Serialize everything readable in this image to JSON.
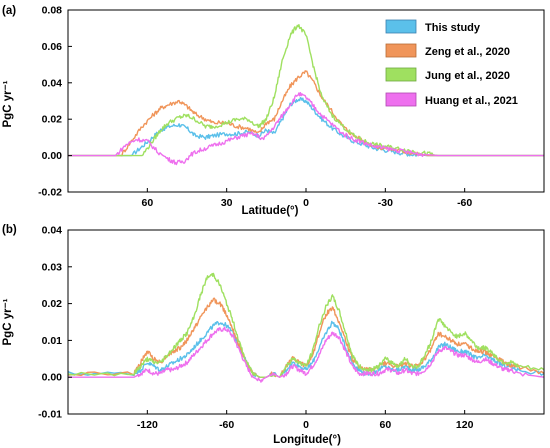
{
  "chart_data": [
    {
      "type": "line",
      "panel_label": "(a)",
      "xlabel": "Latitude(°)",
      "ylabel": "PgC yr⁻¹",
      "x_ticks": [
        60,
        30,
        0,
        -30,
        -60
      ],
      "x_tick_labels": [
        "60",
        "30",
        "0",
        "-30",
        "-60"
      ],
      "xlim": [
        90,
        -90
      ],
      "y_ticks": [
        -0.02,
        0.0,
        0.02,
        0.04,
        0.06,
        0.08
      ],
      "y_tick_labels": [
        "-0.02",
        "0.00",
        "0.02",
        "0.04",
        "0.06",
        "0.08"
      ],
      "ylim": [
        -0.02,
        0.08
      ],
      "grid": false,
      "legend_position": "top-right",
      "series": [
        {
          "name": "This study",
          "color": "#5bc0ea",
          "x": [
            66,
            62,
            58,
            55,
            52,
            48,
            45,
            42,
            38,
            35,
            30,
            26,
            22,
            18,
            15,
            12,
            9,
            6,
            3,
            0,
            -3,
            -6,
            -10,
            -14,
            -18,
            -22,
            -26,
            -30,
            -34,
            -38,
            -42,
            -46
          ],
          "values": [
            0.0,
            0.005,
            0.01,
            0.014,
            0.016,
            0.017,
            0.015,
            0.011,
            0.01,
            0.011,
            0.012,
            0.012,
            0.013,
            0.011,
            0.014,
            0.012,
            0.02,
            0.028,
            0.031,
            0.03,
            0.025,
            0.02,
            0.015,
            0.011,
            0.008,
            0.006,
            0.004,
            0.003,
            0.002,
            0.001,
            0.0005,
            0.0
          ]
        },
        {
          "name": "Zeng et al., 2020",
          "color": "#f0955a",
          "x": [
            70,
            66,
            62,
            58,
            55,
            52,
            48,
            45,
            42,
            38,
            35,
            30,
            26,
            22,
            18,
            15,
            12,
            9,
            6,
            3,
            0,
            -3,
            -6,
            -10,
            -14,
            -18,
            -22,
            -26,
            -30,
            -34,
            -38,
            -42,
            -46
          ],
          "values": [
            0.0,
            0.008,
            0.016,
            0.022,
            0.026,
            0.028,
            0.03,
            0.027,
            0.023,
            0.02,
            0.018,
            0.018,
            0.016,
            0.015,
            0.012,
            0.018,
            0.02,
            0.03,
            0.038,
            0.043,
            0.046,
            0.04,
            0.032,
            0.024,
            0.016,
            0.011,
            0.008,
            0.005,
            0.004,
            0.003,
            0.002,
            0.001,
            0.0
          ]
        },
        {
          "name": "Jung et al., 2020",
          "color": "#9fe060",
          "x": [
            62,
            58,
            55,
            52,
            48,
            45,
            42,
            38,
            35,
            30,
            26,
            22,
            18,
            15,
            12,
            9,
            6,
            3,
            0,
            -3,
            -6,
            -10,
            -14,
            -18,
            -22,
            -26,
            -30,
            -34,
            -38,
            -42,
            -46,
            -50
          ],
          "values": [
            0.0,
            0.008,
            0.014,
            0.018,
            0.021,
            0.022,
            0.02,
            0.016,
            0.016,
            0.018,
            0.02,
            0.02,
            0.016,
            0.02,
            0.032,
            0.052,
            0.066,
            0.072,
            0.066,
            0.048,
            0.032,
            0.022,
            0.016,
            0.011,
            0.008,
            0.006,
            0.005,
            0.004,
            0.003,
            0.002,
            0.001,
            0.0
          ]
        },
        {
          "name": "Huang et al., 2021",
          "color": "#ee70ee",
          "x": [
            72,
            68,
            64,
            60,
            56,
            52,
            49,
            46,
            43,
            40,
            36,
            32,
            28,
            24,
            20,
            16,
            12,
            9,
            6,
            3,
            0,
            -3,
            -6,
            -10,
            -14,
            -18,
            -22,
            -26,
            -30,
            -34,
            -38,
            -42,
            -46,
            -50
          ],
          "values": [
            0.0,
            0.006,
            0.009,
            0.008,
            0.002,
            -0.002,
            -0.004,
            -0.003,
            0.001,
            0.003,
            0.005,
            0.007,
            0.009,
            0.011,
            0.012,
            0.009,
            0.016,
            0.022,
            0.028,
            0.034,
            0.032,
            0.027,
            0.022,
            0.017,
            0.012,
            0.009,
            0.007,
            0.005,
            0.004,
            0.003,
            0.002,
            0.001,
            0.0005,
            0.0
          ]
        }
      ]
    },
    {
      "type": "line",
      "panel_label": "(b)",
      "xlabel": "Longitude(°)",
      "ylabel": "PgC yr⁻¹",
      "x_ticks": [
        -120,
        -60,
        0,
        60,
        120
      ],
      "x_tick_labels": [
        "-120",
        "-60",
        "0",
        "60",
        "120"
      ],
      "xlim": [
        -180,
        180
      ],
      "y_ticks": [
        -0.01,
        0.0,
        0.01,
        0.02,
        0.03,
        0.04
      ],
      "y_tick_labels": [
        "-0.01",
        "0.00",
        "0.01",
        "0.02",
        "0.03",
        "0.04"
      ],
      "ylim": [
        -0.01,
        0.04
      ],
      "grid": false,
      "series": [
        {
          "name": "This study",
          "color": "#5bc0ea",
          "x": [
            -180,
            -130,
            -125,
            -120,
            -115,
            -110,
            -105,
            -100,
            -95,
            -90,
            -85,
            -80,
            -75,
            -70,
            -65,
            -60,
            -55,
            -50,
            -45,
            -40,
            -35,
            -30,
            -25,
            -20,
            -15,
            -10,
            -5,
            0,
            5,
            10,
            15,
            20,
            25,
            30,
            35,
            40,
            45,
            50,
            55,
            60,
            65,
            70,
            75,
            80,
            85,
            90,
            95,
            100,
            105,
            110,
            115,
            120,
            125,
            130,
            135,
            140,
            145,
            150,
            155,
            160,
            180
          ],
          "values": [
            0.001,
            0.001,
            0.002,
            0.004,
            0.003,
            0.002,
            0.003,
            0.004,
            0.005,
            0.006,
            0.008,
            0.01,
            0.012,
            0.014,
            0.015,
            0.014,
            0.012,
            0.008,
            0.004,
            0.001,
            0.0,
            0.0,
            0.001,
            0.0,
            0.002,
            0.004,
            0.003,
            0.002,
            0.004,
            0.008,
            0.012,
            0.015,
            0.013,
            0.008,
            0.004,
            0.002,
            0.001,
            0.001,
            0.002,
            0.003,
            0.002,
            0.002,
            0.003,
            0.002,
            0.002,
            0.003,
            0.005,
            0.008,
            0.009,
            0.008,
            0.007,
            0.007,
            0.006,
            0.005,
            0.006,
            0.005,
            0.004,
            0.003,
            0.003,
            0.002,
            0.001
          ]
        },
        {
          "name": "Zeng et al., 2020",
          "color": "#f0955a",
          "x": [
            -180,
            -130,
            -125,
            -120,
            -115,
            -110,
            -105,
            -100,
            -95,
            -90,
            -85,
            -80,
            -75,
            -70,
            -65,
            -60,
            -55,
            -50,
            -45,
            -40,
            -35,
            -30,
            -25,
            -20,
            -15,
            -10,
            -5,
            0,
            5,
            10,
            15,
            20,
            25,
            30,
            35,
            40,
            45,
            50,
            55,
            60,
            65,
            70,
            75,
            80,
            85,
            90,
            95,
            100,
            105,
            110,
            115,
            120,
            125,
            130,
            135,
            140,
            145,
            150,
            155,
            160,
            180
          ],
          "values": [
            0.001,
            0.001,
            0.004,
            0.007,
            0.005,
            0.004,
            0.006,
            0.007,
            0.008,
            0.01,
            0.013,
            0.016,
            0.019,
            0.021,
            0.02,
            0.017,
            0.013,
            0.008,
            0.004,
            0.001,
            0.0,
            0.0,
            0.001,
            0.0,
            0.003,
            0.005,
            0.004,
            0.003,
            0.006,
            0.012,
            0.017,
            0.019,
            0.015,
            0.01,
            0.005,
            0.003,
            0.002,
            0.002,
            0.003,
            0.004,
            0.003,
            0.003,
            0.004,
            0.003,
            0.003,
            0.005,
            0.008,
            0.012,
            0.011,
            0.01,
            0.009,
            0.009,
            0.008,
            0.007,
            0.007,
            0.006,
            0.005,
            0.004,
            0.003,
            0.003,
            0.001
          ]
        },
        {
          "name": "Jung et al., 2020",
          "color": "#9fe060",
          "x": [
            -180,
            -130,
            -125,
            -120,
            -115,
            -110,
            -105,
            -100,
            -95,
            -90,
            -85,
            -80,
            -75,
            -70,
            -65,
            -60,
            -55,
            -50,
            -45,
            -40,
            -35,
            -30,
            -25,
            -20,
            -15,
            -10,
            -5,
            0,
            5,
            10,
            15,
            20,
            25,
            30,
            35,
            40,
            45,
            50,
            55,
            60,
            65,
            70,
            75,
            80,
            85,
            90,
            95,
            100,
            105,
            110,
            115,
            120,
            125,
            130,
            135,
            140,
            145,
            150,
            155,
            160,
            180
          ],
          "values": [
            0.001,
            0.001,
            0.003,
            0.005,
            0.004,
            0.004,
            0.006,
            0.008,
            0.01,
            0.012,
            0.016,
            0.022,
            0.027,
            0.028,
            0.025,
            0.02,
            0.015,
            0.009,
            0.004,
            0.001,
            0.0,
            0.0,
            0.001,
            0.0,
            0.003,
            0.005,
            0.004,
            0.003,
            0.007,
            0.014,
            0.019,
            0.022,
            0.018,
            0.012,
            0.006,
            0.003,
            0.002,
            0.002,
            0.003,
            0.005,
            0.004,
            0.003,
            0.005,
            0.003,
            0.003,
            0.006,
            0.01,
            0.016,
            0.014,
            0.012,
            0.011,
            0.012,
            0.01,
            0.008,
            0.008,
            0.007,
            0.005,
            0.004,
            0.004,
            0.003,
            0.002
          ]
        },
        {
          "name": "Huang et al., 2021",
          "color": "#ee70ee",
          "x": [
            -180,
            -130,
            -125,
            -120,
            -115,
            -110,
            -105,
            -100,
            -95,
            -90,
            -85,
            -80,
            -75,
            -70,
            -65,
            -60,
            -55,
            -50,
            -45,
            -40,
            -35,
            -30,
            -25,
            -20,
            -15,
            -10,
            -5,
            0,
            5,
            10,
            15,
            20,
            25,
            30,
            35,
            40,
            45,
            50,
            55,
            60,
            65,
            70,
            75,
            80,
            85,
            90,
            95,
            100,
            105,
            110,
            115,
            120,
            125,
            130,
            135,
            140,
            145,
            150,
            155,
            160,
            180
          ],
          "values": [
            0.0,
            0.0,
            0.001,
            0.002,
            0.001,
            0.001,
            0.002,
            0.002,
            0.003,
            0.004,
            0.006,
            0.008,
            0.01,
            0.012,
            0.013,
            0.013,
            0.011,
            0.007,
            0.003,
            0.0,
            -0.001,
            0.0,
            0.001,
            0.0,
            0.001,
            0.003,
            0.002,
            0.001,
            0.003,
            0.006,
            0.01,
            0.012,
            0.011,
            0.007,
            0.003,
            0.001,
            0.001,
            0.001,
            0.001,
            0.002,
            0.002,
            0.001,
            0.002,
            0.001,
            0.001,
            0.002,
            0.004,
            0.007,
            0.008,
            0.007,
            0.006,
            0.006,
            0.005,
            0.004,
            0.005,
            0.004,
            0.003,
            0.002,
            0.002,
            0.001,
            0.0
          ]
        }
      ]
    }
  ]
}
